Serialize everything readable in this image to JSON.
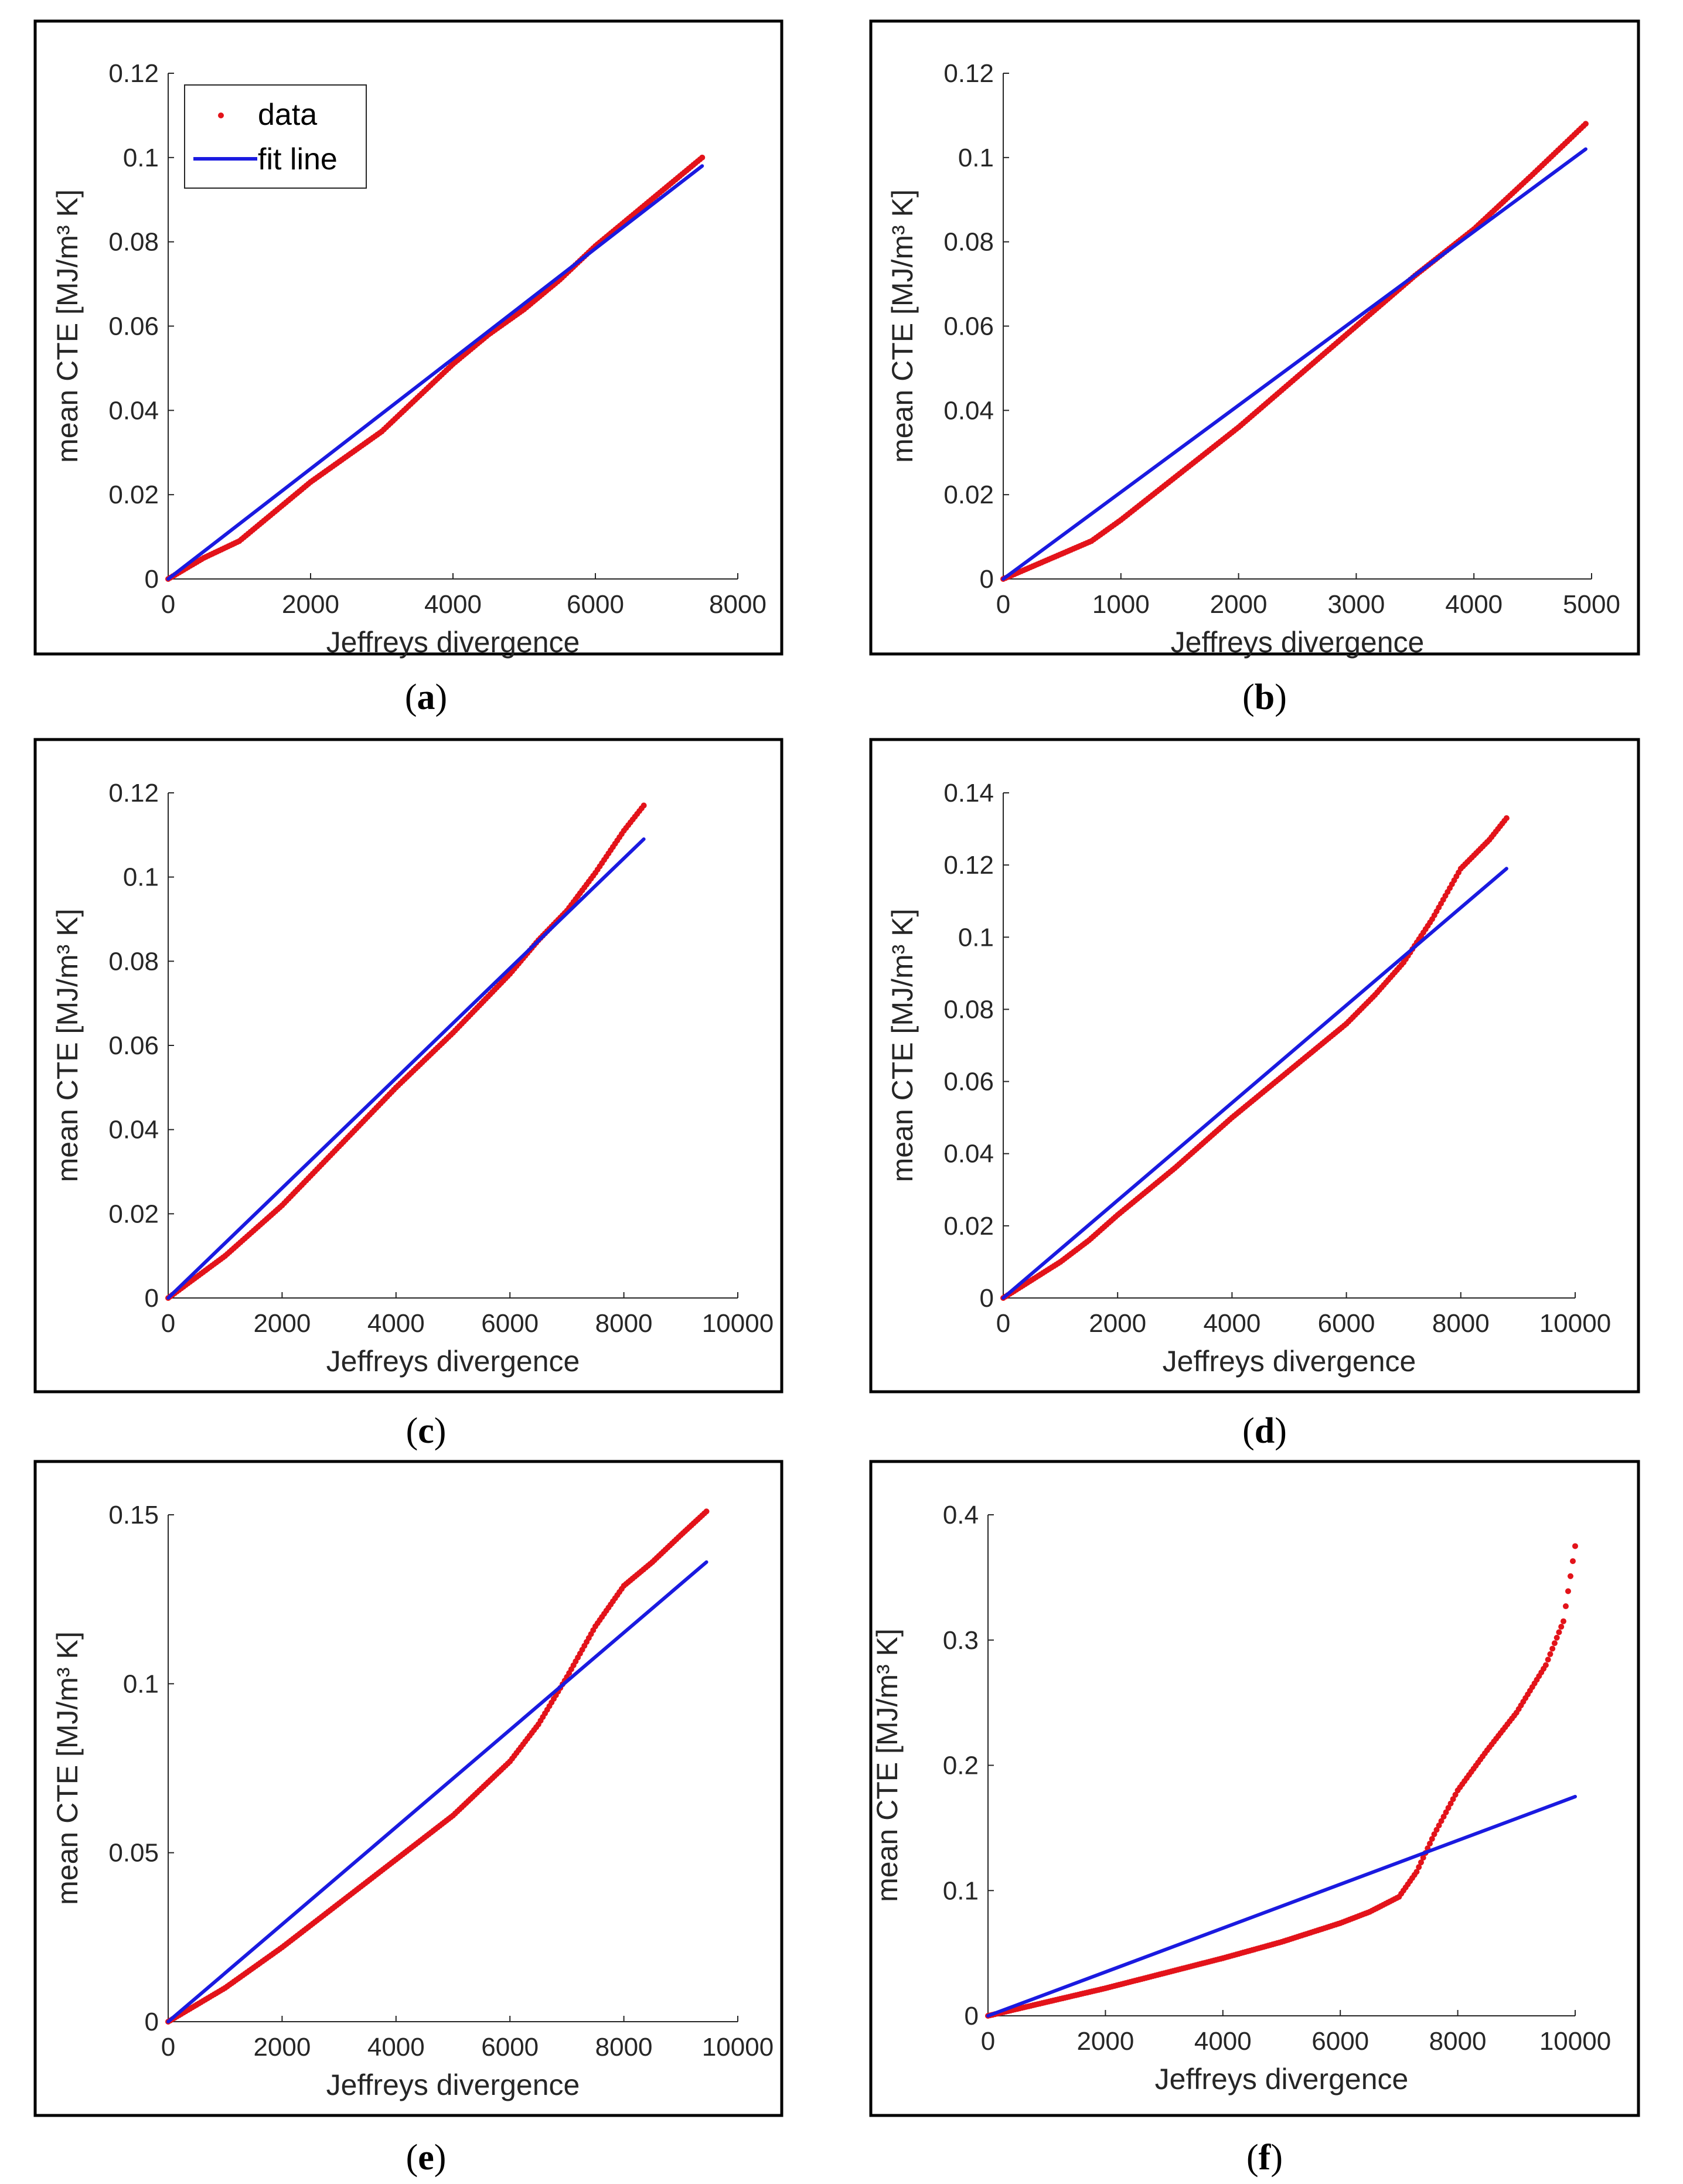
{
  "colors": {
    "data": "#e3131a",
    "fit": "#1a1ae0",
    "axis": "#262626",
    "frame": "#000000"
  },
  "chart_data": [
    {
      "id": "a",
      "type": "line",
      "caption": "a",
      "xlabel": "Jeffreys divergence",
      "ylabel": "mean CTE [MJ/m³ K]",
      "xlim": [
        0,
        8000
      ],
      "ylim": [
        0,
        0.12
      ],
      "xticks": [
        0,
        2000,
        4000,
        6000,
        8000
      ],
      "xtick_labels": [
        "0",
        "2000",
        "4000",
        "6000",
        "8000"
      ],
      "yticks": [
        0,
        0.02,
        0.04,
        0.06,
        0.08,
        0.1,
        0.12
      ],
      "ytick_labels": [
        "0",
        "0.02",
        "0.04",
        "0.06",
        "0.08",
        "0.1",
        "0.12"
      ],
      "legend": {
        "position": "top-left",
        "entries": [
          "data",
          "fit line"
        ]
      },
      "series": [
        {
          "name": "data",
          "style": "points",
          "x": [
            0,
            500,
            1000,
            1500,
            2000,
            2500,
            3000,
            3500,
            4000,
            4500,
            5000,
            5500,
            6000,
            6500,
            7000,
            7500
          ],
          "y": [
            0,
            0.005,
            0.009,
            0.016,
            0.023,
            0.029,
            0.035,
            0.043,
            0.051,
            0.058,
            0.064,
            0.071,
            0.079,
            0.086,
            0.093,
            0.1
          ]
        },
        {
          "name": "fit line",
          "style": "line",
          "x": [
            0,
            7500
          ],
          "y": [
            0,
            0.098
          ]
        }
      ]
    },
    {
      "id": "b",
      "type": "line",
      "caption": "b",
      "xlabel": "Jeffreys divergence",
      "ylabel": "mean CTE [MJ/m³ K]",
      "xlim": [
        0,
        5000
      ],
      "ylim": [
        0,
        0.12
      ],
      "xticks": [
        0,
        1000,
        2000,
        3000,
        4000,
        5000
      ],
      "xtick_labels": [
        "0",
        "1000",
        "2000",
        "3000",
        "4000",
        "5000"
      ],
      "yticks": [
        0,
        0.02,
        0.04,
        0.06,
        0.08,
        0.1,
        0.12
      ],
      "ytick_labels": [
        "0",
        "0.02",
        "0.04",
        "0.06",
        "0.08",
        "0.1",
        "0.12"
      ],
      "series": [
        {
          "name": "data",
          "style": "points",
          "x": [
            0,
            250,
            500,
            750,
            1000,
            1500,
            2000,
            2500,
            3000,
            3500,
            4000,
            4500,
            4950
          ],
          "y": [
            0,
            0.003,
            0.006,
            0.009,
            0.014,
            0.025,
            0.036,
            0.048,
            0.06,
            0.072,
            0.083,
            0.096,
            0.108
          ]
        },
        {
          "name": "fit line",
          "style": "line",
          "x": [
            0,
            4950
          ],
          "y": [
            0,
            0.102
          ]
        }
      ]
    },
    {
      "id": "c",
      "type": "line",
      "caption": "c",
      "xlabel": "Jeffreys divergence",
      "ylabel": "mean CTE [MJ/m³ K]",
      "xlim": [
        0,
        10000
      ],
      "ylim": [
        0,
        0.12
      ],
      "xticks": [
        0,
        2000,
        4000,
        6000,
        8000,
        10000
      ],
      "xtick_labels": [
        "0",
        "2000",
        "4000",
        "6000",
        "8000",
        "10000"
      ],
      "yticks": [
        0,
        0.02,
        0.04,
        0.06,
        0.08,
        0.1,
        0.12
      ],
      "ytick_labels": [
        "0",
        "0.02",
        "0.04",
        "0.06",
        "0.08",
        "0.1",
        "0.12"
      ],
      "series": [
        {
          "name": "data",
          "style": "points",
          "x": [
            0,
            500,
            1000,
            1500,
            2000,
            3000,
            4000,
            5000,
            6000,
            6500,
            7000,
            7500,
            8000,
            8350
          ],
          "y": [
            0,
            0.005,
            0.01,
            0.016,
            0.022,
            0.036,
            0.05,
            0.063,
            0.077,
            0.085,
            0.092,
            0.101,
            0.111,
            0.117
          ]
        },
        {
          "name": "fit line",
          "style": "line",
          "x": [
            0,
            8350
          ],
          "y": [
            0,
            0.109
          ]
        }
      ]
    },
    {
      "id": "d",
      "type": "line",
      "caption": "d",
      "xlabel": "Jeffreys divergence",
      "ylabel": "mean CTE [MJ/m³ K]",
      "xlim": [
        0,
        10000
      ],
      "ylim": [
        0,
        0.14
      ],
      "xticks": [
        0,
        2000,
        4000,
        6000,
        8000,
        10000
      ],
      "xtick_labels": [
        "0",
        "2000",
        "4000",
        "6000",
        "8000",
        "10000"
      ],
      "yticks": [
        0,
        0.02,
        0.04,
        0.06,
        0.08,
        0.1,
        0.12,
        0.14
      ],
      "ytick_labels": [
        "0",
        "0.02",
        "0.04",
        "0.06",
        "0.08",
        "0.1",
        "0.12",
        "0.14"
      ],
      "series": [
        {
          "name": "data",
          "style": "points",
          "x": [
            0,
            500,
            1000,
            1500,
            2000,
            3000,
            4000,
            5000,
            6000,
            6500,
            7000,
            7500,
            8000,
            8500,
            8800
          ],
          "y": [
            0,
            0.005,
            0.01,
            0.016,
            0.023,
            0.036,
            0.05,
            0.063,
            0.076,
            0.084,
            0.093,
            0.105,
            0.119,
            0.127,
            0.133
          ]
        },
        {
          "name": "fit line",
          "style": "line",
          "x": [
            0,
            8800
          ],
          "y": [
            0,
            0.119
          ]
        }
      ]
    },
    {
      "id": "e",
      "type": "line",
      "caption": "e",
      "xlabel": "Jeffreys divergence",
      "ylabel": "mean CTE [MJ/m³ K]",
      "xlim": [
        0,
        10000
      ],
      "ylim": [
        0,
        0.15
      ],
      "xticks": [
        0,
        2000,
        4000,
        6000,
        8000,
        10000
      ],
      "xtick_labels": [
        "0",
        "2000",
        "4000",
        "6000",
        "8000",
        "10000"
      ],
      "yticks": [
        0,
        0.05,
        0.1,
        0.15
      ],
      "ytick_labels": [
        "0",
        "0.05",
        "0.1",
        "0.15"
      ],
      "series": [
        {
          "name": "data",
          "style": "points",
          "x": [
            0,
            500,
            1000,
            2000,
            3000,
            4000,
            5000,
            6000,
            6500,
            7000,
            7500,
            8000,
            8500,
            9000,
            9450
          ],
          "y": [
            0,
            0.005,
            0.01,
            0.022,
            0.035,
            0.048,
            0.061,
            0.077,
            0.088,
            0.102,
            0.117,
            0.129,
            0.136,
            0.144,
            0.151
          ]
        },
        {
          "name": "fit line",
          "style": "line",
          "x": [
            0,
            9450
          ],
          "y": [
            0,
            0.136
          ]
        }
      ]
    },
    {
      "id": "f",
      "type": "line",
      "caption": "f",
      "xlabel": "Jeffreys divergence",
      "ylabel": "mean CTE [MJ/m³ K]",
      "xlim": [
        0,
        10000
      ],
      "ylim": [
        0,
        0.4
      ],
      "xticks": [
        0,
        2000,
        4000,
        6000,
        8000,
        10000
      ],
      "xtick_labels": [
        "0",
        "2000",
        "4000",
        "6000",
        "8000",
        "10000"
      ],
      "yticks": [
        0,
        0.1,
        0.2,
        0.3,
        0.4
      ],
      "ytick_labels": [
        "0",
        "0.1",
        "0.2",
        "0.3",
        "0.4"
      ],
      "series": [
        {
          "name": "data",
          "style": "points",
          "x": [
            0,
            1000,
            2000,
            3000,
            4000,
            5000,
            6000,
            6500,
            7000,
            7300,
            7600,
            8000,
            8500,
            9000,
            9500,
            9800,
            10000
          ],
          "y": [
            0,
            0.011,
            0.022,
            0.034,
            0.046,
            0.059,
            0.074,
            0.083,
            0.095,
            0.115,
            0.145,
            0.18,
            0.212,
            0.242,
            0.28,
            0.315,
            0.375
          ]
        },
        {
          "name": "fit line",
          "style": "line",
          "x": [
            0,
            10000
          ],
          "y": [
            0,
            0.175
          ]
        }
      ]
    }
  ]
}
